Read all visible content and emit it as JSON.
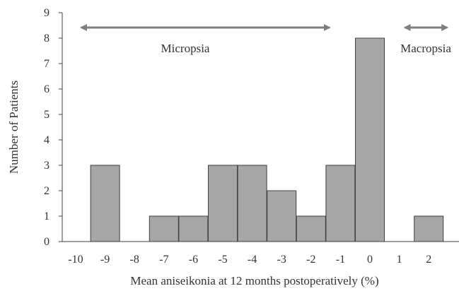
{
  "chart_data": {
    "type": "bar",
    "categories": [
      "-10",
      "-9",
      "-8",
      "-7",
      "-6",
      "-5",
      "-4",
      "-3",
      "-2",
      "-1",
      "0",
      "1",
      "2"
    ],
    "values": [
      0,
      3,
      0,
      1,
      1,
      3,
      3,
      2,
      1,
      3,
      8,
      0,
      1
    ],
    "y_ticks": [
      "0",
      "1",
      "2",
      "3",
      "4",
      "5",
      "6",
      "7",
      "8",
      "9"
    ],
    "ylim": [
      0,
      9
    ],
    "title": "",
    "xlabel": "Mean aniseikonia at 12 months postoperatively (%)",
    "ylabel": "Number of Patients",
    "grid": false,
    "bar_color": "#a6a6a6",
    "bar_edge_color": "#404040",
    "arrow_color": "#7f7f7f",
    "annotations": [
      {
        "label": "Micropsia",
        "from": "-10",
        "to": "-2"
      },
      {
        "label": "Macropsia",
        "from": "1",
        "to": "2"
      }
    ]
  }
}
